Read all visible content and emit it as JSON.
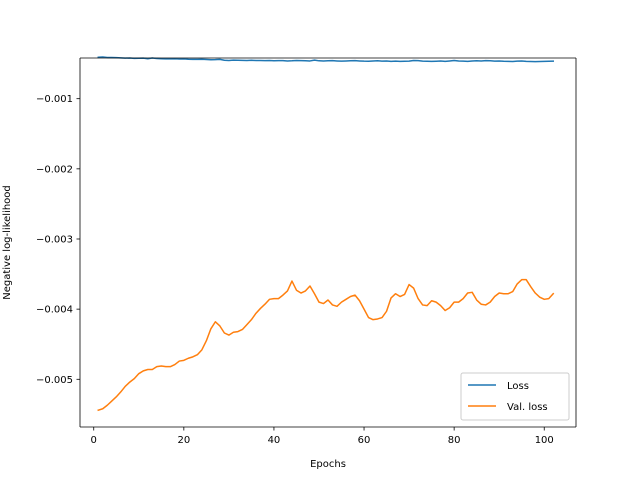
{
  "chart_data": {
    "type": "line",
    "xlabel": "Epochs",
    "ylabel": "Negative log-likelihood",
    "xlim": [
      -3.05,
      107.05
    ],
    "ylim": [
      -0.00568,
      -0.00042
    ],
    "xticks": [
      0,
      20,
      40,
      60,
      80,
      100
    ],
    "yticks": [
      -0.005,
      -0.004,
      -0.003,
      -0.002,
      -0.001
    ],
    "ytick_labels": [
      "−0.005",
      "−0.004",
      "−0.003",
      "−0.002",
      "−0.001"
    ],
    "grid": false,
    "legend_position": "lower-right",
    "x": [
      1,
      2,
      3,
      4,
      5,
      6,
      7,
      8,
      9,
      10,
      11,
      12,
      13,
      14,
      15,
      16,
      17,
      18,
      19,
      20,
      21,
      22,
      23,
      24,
      25,
      26,
      27,
      28,
      29,
      30,
      31,
      32,
      33,
      34,
      35,
      36,
      37,
      38,
      39,
      40,
      41,
      42,
      43,
      44,
      45,
      46,
      47,
      48,
      49,
      50,
      51,
      52,
      53,
      54,
      55,
      56,
      57,
      58,
      59,
      60,
      61,
      62,
      63,
      64,
      65,
      66,
      67,
      68,
      69,
      70,
      71,
      72,
      73,
      74,
      75,
      76,
      77,
      78,
      79,
      80,
      81,
      82,
      83,
      84,
      85,
      86,
      87,
      88,
      89,
      90,
      91,
      92,
      93,
      94,
      95,
      96,
      97,
      98,
      99,
      100,
      101,
      102
    ],
    "series": [
      {
        "name": "Loss",
        "color": "#1f77b4",
        "values": [
          -0.00041,
          -0.000405,
          -0.000412,
          -0.000413,
          -0.000415,
          -0.000418,
          -0.000422,
          -0.00042,
          -0.000425,
          -0.000424,
          -0.000422,
          -0.00043,
          -0.00042,
          -0.000428,
          -0.00043,
          -0.000432,
          -0.000433,
          -0.00043,
          -0.000435,
          -0.000432,
          -0.000438,
          -0.00044,
          -0.00044,
          -0.000438,
          -0.000442,
          -0.000445,
          -0.000444,
          -0.00044,
          -0.000452,
          -0.000455,
          -0.00045,
          -0.000452,
          -0.000453,
          -0.000455,
          -0.000452,
          -0.000456,
          -0.000455,
          -0.000458,
          -0.000455,
          -0.00046,
          -0.000458,
          -0.000458,
          -0.000462,
          -0.00046,
          -0.000455,
          -0.000458,
          -0.00046,
          -0.000462,
          -0.00045,
          -0.00046,
          -0.000462,
          -0.00046,
          -0.000458,
          -0.000462,
          -0.000465,
          -0.000462,
          -0.00046,
          -0.000458,
          -0.000462,
          -0.000465,
          -0.000466,
          -0.000462,
          -0.00046,
          -0.000465,
          -0.000462,
          -0.000468,
          -0.000465,
          -0.000468,
          -0.000466,
          -0.000465,
          -0.000455,
          -0.000458,
          -0.000465,
          -0.000467,
          -0.000468,
          -0.000466,
          -0.000463,
          -0.000468,
          -0.000462,
          -0.000455,
          -0.000462,
          -0.000464,
          -0.000468,
          -0.000462,
          -0.00046,
          -0.000462,
          -0.000458,
          -0.00046,
          -0.000465,
          -0.000462,
          -0.000466,
          -0.000468,
          -0.00047,
          -0.000465,
          -0.000462,
          -0.000468,
          -0.00047,
          -0.000472,
          -0.00047,
          -0.000468,
          -0.000466,
          -0.000465
        ]
      },
      {
        "name": "Val. loss",
        "color": "#ff7f0e",
        "values": [
          -0.00544,
          -0.00542,
          -0.00537,
          -0.00531,
          -0.00525,
          -0.00518,
          -0.0051,
          -0.00504,
          -0.00499,
          -0.00492,
          -0.00488,
          -0.00486,
          -0.00486,
          -0.00482,
          -0.00481,
          -0.00482,
          -0.00482,
          -0.00479,
          -0.00474,
          -0.00473,
          -0.0047,
          -0.00468,
          -0.00465,
          -0.00458,
          -0.00445,
          -0.00428,
          -0.00418,
          -0.00424,
          -0.00434,
          -0.00437,
          -0.00433,
          -0.00432,
          -0.00429,
          -0.00422,
          -0.00415,
          -0.00406,
          -0.00399,
          -0.00393,
          -0.00386,
          -0.00385,
          -0.00385,
          -0.0038,
          -0.00374,
          -0.0036,
          -0.00373,
          -0.00377,
          -0.00374,
          -0.00367,
          -0.00378,
          -0.0039,
          -0.00392,
          -0.00387,
          -0.00394,
          -0.00396,
          -0.0039,
          -0.00386,
          -0.00382,
          -0.0038,
          -0.00388,
          -0.004,
          -0.00412,
          -0.00415,
          -0.00414,
          -0.00412,
          -0.00403,
          -0.00384,
          -0.00378,
          -0.00382,
          -0.00379,
          -0.00365,
          -0.0037,
          -0.00385,
          -0.00394,
          -0.00395,
          -0.00388,
          -0.0039,
          -0.00395,
          -0.00402,
          -0.00398,
          -0.0039,
          -0.0039,
          -0.00385,
          -0.00377,
          -0.00376,
          -0.00387,
          -0.00393,
          -0.00394,
          -0.0039,
          -0.00382,
          -0.00377,
          -0.00378,
          -0.00378,
          -0.00375,
          -0.00364,
          -0.00358,
          -0.00358,
          -0.00368,
          -0.00377,
          -0.00383,
          -0.00386,
          -0.00385,
          -0.00378
        ]
      }
    ]
  }
}
